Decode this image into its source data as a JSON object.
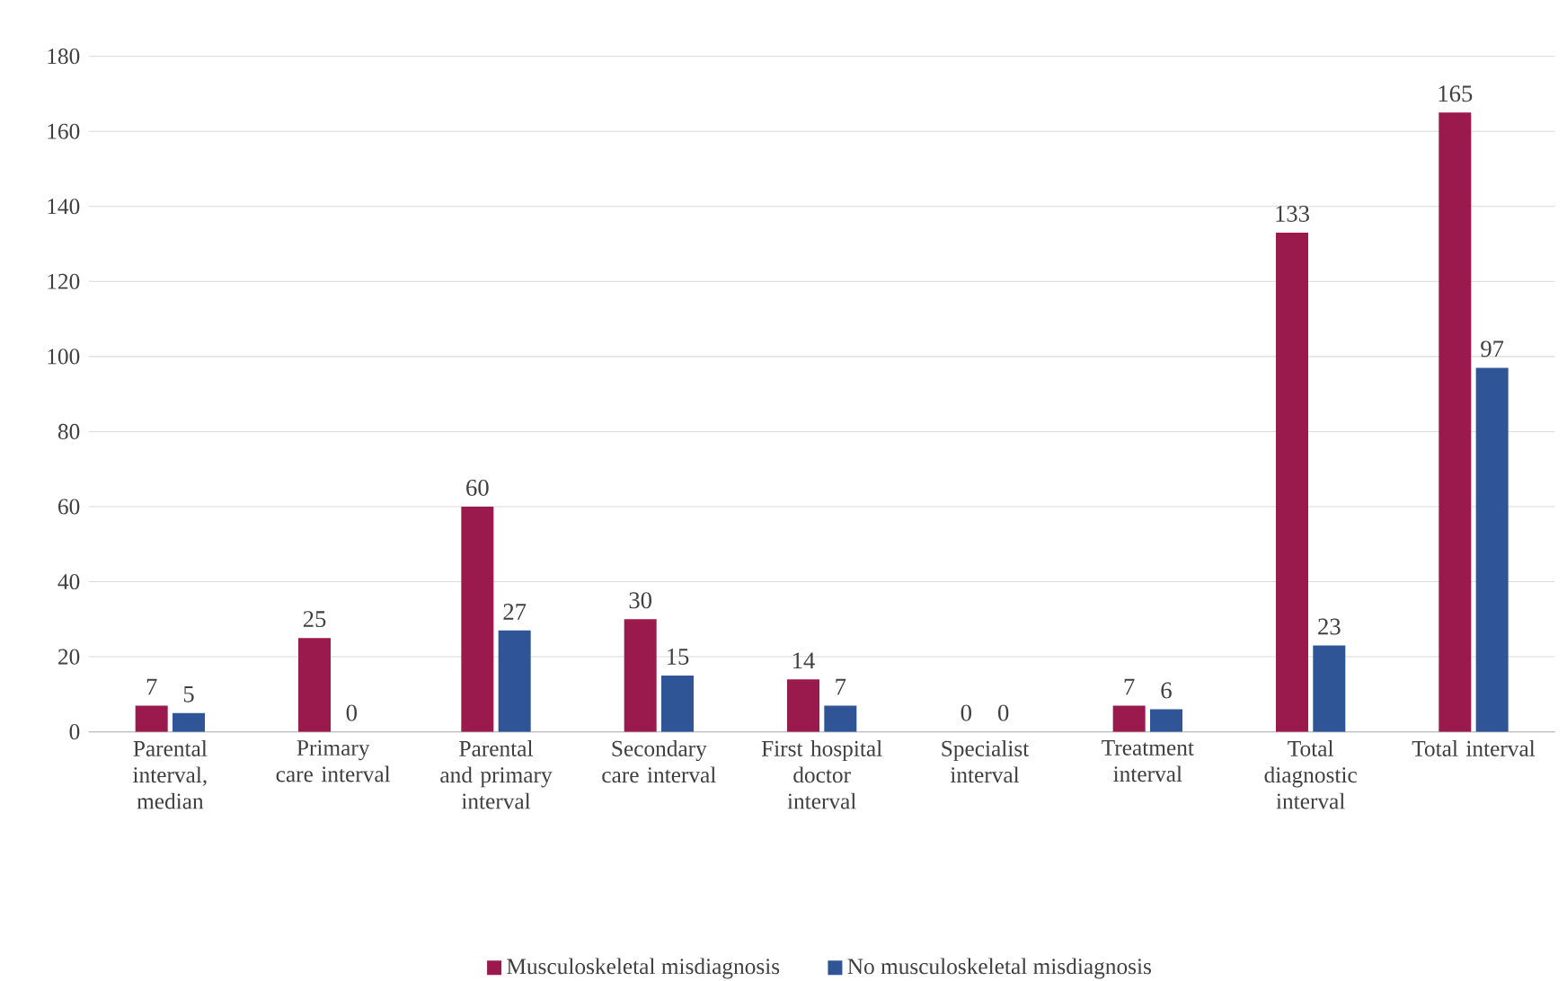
{
  "chart_data": {
    "type": "bar",
    "categories": [
      "Parental interval, median",
      "Primary care interval",
      "Parental and primary interval",
      "Secondary care interval",
      "First hospital doctor interval",
      "Specialist interval",
      "Treatment interval",
      "Total diagnostic interval",
      "Total interval"
    ],
    "series": [
      {
        "name": "Musculoskeletal misdiagnosis",
        "color": "#9b1a4e",
        "values": [
          7,
          25,
          60,
          30,
          14,
          0,
          7,
          133,
          165
        ]
      },
      {
        "name": "No musculoskeletal misdiagnosis",
        "color": "#2f5597",
        "values": [
          5,
          0,
          27,
          15,
          7,
          0,
          6,
          23,
          97
        ]
      }
    ],
    "ylim": [
      0,
      180
    ],
    "yticks": [
      0,
      20,
      40,
      60,
      80,
      100,
      120,
      140,
      160,
      180
    ],
    "grid": "y",
    "legend": "bottom",
    "data_labels": true
  }
}
